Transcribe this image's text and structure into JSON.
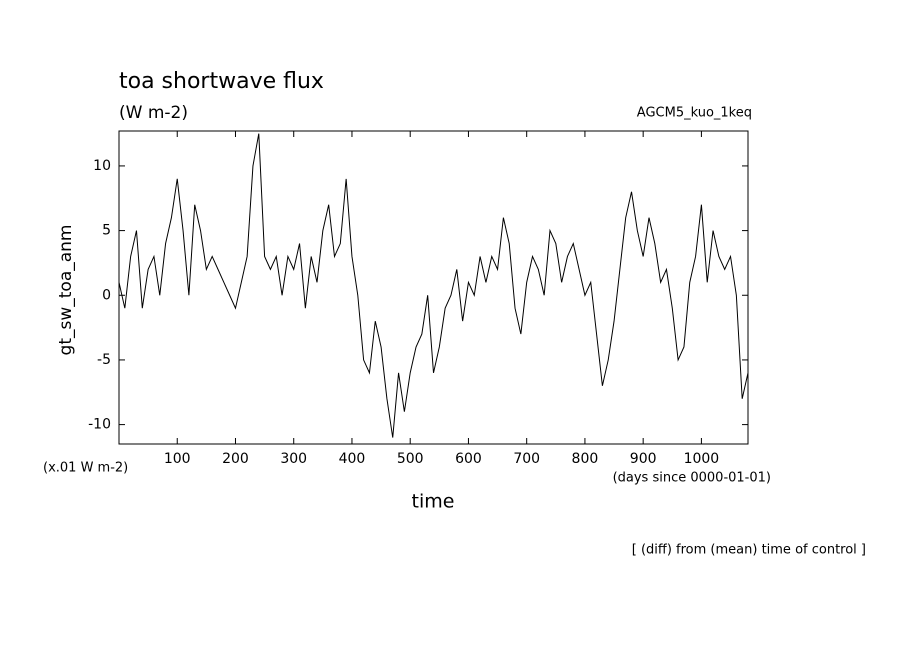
{
  "chart_data": {
    "type": "line",
    "title": "toa shortwave flux",
    "units": "(W m-2)",
    "experiment": "AGCM5_kuo_1keq",
    "y_label": "gt_sw_toa_anm",
    "y_scale_note": "(x.01 W m-2)",
    "x_label": "time",
    "x_units": "(days since 0000-01-01)",
    "footnote": "[ (diff) from (mean) time of control ]",
    "color": "#000000",
    "x": [
      0,
      10,
      20,
      30,
      40,
      50,
      60,
      70,
      80,
      90,
      100,
      110,
      120,
      130,
      140,
      150,
      160,
      170,
      180,
      190,
      200,
      210,
      220,
      230,
      240,
      250,
      260,
      270,
      280,
      290,
      300,
      310,
      320,
      330,
      340,
      350,
      360,
      370,
      380,
      390,
      400,
      410,
      420,
      430,
      440,
      450,
      460,
      470,
      480,
      490,
      500,
      510,
      520,
      530,
      540,
      550,
      560,
      570,
      580,
      590,
      600,
      610,
      620,
      630,
      640,
      650,
      660,
      670,
      680,
      690,
      700,
      710,
      720,
      730,
      740,
      750,
      760,
      770,
      780,
      790,
      800,
      810,
      820,
      830,
      840,
      850,
      860,
      870,
      880,
      890,
      900,
      910,
      920,
      930,
      940,
      950,
      960,
      970,
      980,
      990,
      1000,
      1010,
      1020,
      1030,
      1040,
      1050,
      1060,
      1070,
      1080
    ],
    "values": [
      1,
      -1,
      3,
      5,
      -1,
      2,
      3,
      0,
      4,
      6,
      9,
      5,
      0,
      7,
      5,
      2,
      3,
      2,
      1,
      0,
      -1,
      1,
      3,
      10,
      12.5,
      3,
      2,
      3,
      0,
      3,
      2,
      4,
      -1,
      3,
      1,
      5,
      7,
      3,
      4,
      9,
      3,
      0,
      -5,
      -6,
      -2,
      -4,
      -8,
      -11,
      -6,
      -9,
      -6,
      -4,
      -3,
      0,
      -6,
      -4,
      -1,
      0,
      2,
      -2,
      1,
      0,
      3,
      1,
      3,
      2,
      6,
      4,
      -1,
      -3,
      1,
      3,
      2,
      0,
      5,
      4,
      1,
      3,
      4,
      2,
      0,
      1,
      -3,
      -7,
      -5,
      -2,
      2,
      6,
      8,
      5,
      3,
      6,
      4,
      1,
      2,
      -1,
      -5,
      -4,
      1,
      3,
      7,
      1,
      5,
      3,
      2,
      3,
      0,
      -8,
      -6
    ],
    "xlim": [
      0,
      1080
    ],
    "ylim": [
      -11.5,
      12.7
    ],
    "xticks": [
      100,
      200,
      300,
      400,
      500,
      600,
      700,
      800,
      900,
      1000
    ],
    "yticks": [
      -10,
      -5,
      0,
      5,
      10
    ]
  }
}
